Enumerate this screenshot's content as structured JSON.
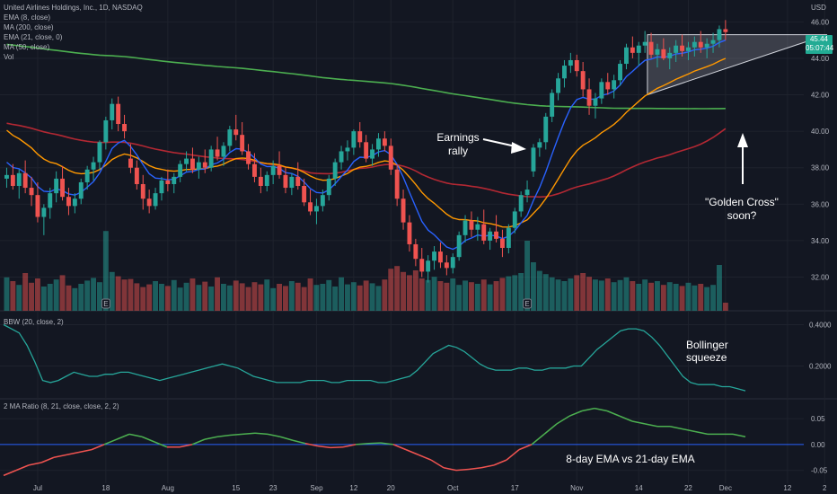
{
  "header": {
    "symbol_title": "United Airlines Holdings, Inc., 1D, NASDAQ",
    "indicators": [
      "EMA (8, close)",
      "MA (200, close)",
      "EMA (21, close, 0)",
      "MA (50, close)",
      "Vol"
    ]
  },
  "panes": {
    "bbw_label": "BBW (20, close, 2)",
    "ratio_label": "2 MA Ratio (8, 21, close, close, 2, 2)"
  },
  "price_badge": {
    "price": "45.44",
    "timer": "05:07:44"
  },
  "colors": {
    "background": "#131722",
    "grid": "#1e222d",
    "up_candle": "#26a69a",
    "down_candle": "#ef5350",
    "ema8": "#2962ff",
    "ema21": "#ff9800",
    "ma50": "#b22833",
    "ma200": "#4caf50",
    "bbw_line": "#26a69a",
    "ratio_up": "#4caf50",
    "ratio_down": "#ef5350",
    "zero_line": "#2962ff",
    "triangle_fill": "#b2b5be"
  },
  "annotations": {
    "earnings": [
      "Earnings",
      "rally"
    ],
    "golden_cross": [
      "\"Golden Cross\"",
      "soon?"
    ],
    "bollinger": [
      "Bollinger",
      "squeeze"
    ],
    "ema_note": "8-day EMA vs 21-day EMA"
  },
  "chart_data": {
    "type": "candlestick",
    "currency": "USD",
    "price_axis": {
      "label": "USD",
      "ticks": [
        32,
        34,
        36,
        38,
        40,
        42,
        44,
        46
      ],
      "tick_labels": [
        "32.00",
        "34.00",
        "36.00",
        "38.00",
        "40.00",
        "42.00",
        "44.00",
        "46.00"
      ],
      "range": [
        30.3,
        47.2
      ]
    },
    "time_axis": {
      "tick_labels": [
        "Jul",
        "18",
        "Aug",
        "15",
        "23",
        "Sep",
        "12",
        "20",
        "Oct",
        "17",
        "Nov",
        "14",
        "22",
        "Dec",
        "12",
        "2"
      ],
      "tick_bar_index": [
        5,
        16,
        26,
        37,
        43,
        50,
        56,
        62,
        72,
        82,
        92,
        102,
        110,
        116,
        126,
        132
      ]
    },
    "ohlc": [
      [
        37.4,
        38.0,
        36.9,
        37.6
      ],
      [
        37.6,
        38.2,
        36.8,
        37.0
      ],
      [
        37.0,
        37.9,
        36.3,
        37.7
      ],
      [
        37.7,
        38.4,
        36.6,
        36.9
      ],
      [
        36.9,
        37.5,
        35.9,
        36.5
      ],
      [
        36.5,
        37.2,
        35.0,
        35.3
      ],
      [
        35.3,
        36.0,
        34.3,
        35.8
      ],
      [
        35.8,
        36.9,
        35.2,
        36.6
      ],
      [
        36.6,
        37.8,
        36.1,
        37.4
      ],
      [
        37.4,
        38.1,
        36.2,
        36.4
      ],
      [
        36.4,
        36.9,
        35.4,
        35.9
      ],
      [
        35.9,
        36.6,
        35.5,
        36.3
      ],
      [
        36.3,
        37.4,
        36.0,
        37.2
      ],
      [
        37.2,
        38.1,
        36.8,
        37.9
      ],
      [
        37.9,
        38.6,
        37.3,
        38.3
      ],
      [
        38.3,
        39.5,
        37.9,
        39.4
      ],
      [
        39.4,
        40.8,
        39.0,
        40.6
      ],
      [
        40.6,
        41.8,
        40.1,
        41.5
      ],
      [
        41.5,
        41.9,
        40.0,
        40.4
      ],
      [
        40.4,
        40.9,
        39.6,
        40.0
      ],
      [
        38.5,
        39.3,
        37.7,
        38.0
      ],
      [
        38.0,
        38.4,
        36.8,
        37.1
      ],
      [
        37.1,
        37.6,
        35.7,
        36.3
      ],
      [
        36.3,
        36.8,
        35.5,
        35.9
      ],
      [
        35.9,
        36.9,
        35.7,
        36.6
      ],
      [
        36.6,
        37.5,
        36.2,
        37.3
      ],
      [
        37.3,
        37.9,
        36.7,
        37.1
      ],
      [
        37.1,
        37.7,
        36.6,
        37.5
      ],
      [
        37.5,
        38.4,
        37.2,
        38.2
      ],
      [
        38.2,
        38.9,
        37.8,
        38.5
      ],
      [
        38.5,
        39.1,
        37.7,
        37.9
      ],
      [
        37.9,
        38.6,
        37.4,
        38.3
      ],
      [
        38.3,
        39.0,
        37.7,
        38.0
      ],
      [
        38.0,
        39.2,
        37.8,
        39.0
      ],
      [
        39.0,
        39.7,
        38.4,
        38.6
      ],
      [
        38.6,
        39.4,
        38.1,
        39.2
      ],
      [
        39.2,
        40.3,
        38.9,
        40.1
      ],
      [
        40.1,
        40.9,
        39.5,
        39.8
      ],
      [
        39.8,
        40.5,
        38.7,
        38.9
      ],
      [
        38.9,
        39.3,
        37.9,
        38.2
      ],
      [
        38.2,
        38.8,
        37.2,
        37.5
      ],
      [
        37.5,
        38.0,
        36.6,
        37.0
      ],
      [
        37.0,
        37.8,
        36.7,
        37.6
      ],
      [
        37.6,
        38.4,
        37.1,
        38.1
      ],
      [
        38.1,
        38.9,
        37.4,
        37.6
      ],
      [
        37.6,
        38.0,
        36.6,
        36.9
      ],
      [
        36.9,
        37.7,
        36.5,
        37.5
      ],
      [
        37.5,
        38.3,
        36.8,
        37.0
      ],
      [
        37.0,
        37.4,
        35.9,
        36.1
      ],
      [
        36.1,
        36.8,
        35.4,
        35.6
      ],
      [
        35.6,
        36.3,
        34.9,
        35.9
      ],
      [
        35.9,
        36.8,
        35.6,
        36.5
      ],
      [
        36.5,
        37.6,
        36.2,
        37.4
      ],
      [
        37.4,
        38.5,
        37.0,
        38.3
      ],
      [
        38.3,
        39.2,
        37.9,
        38.9
      ],
      [
        38.9,
        39.5,
        38.4,
        39.1
      ],
      [
        39.1,
        40.1,
        38.7,
        40.0
      ],
      [
        40.0,
        40.5,
        39.1,
        39.4
      ],
      [
        39.4,
        39.8,
        38.3,
        38.5
      ],
      [
        38.5,
        39.3,
        38.1,
        39.0
      ],
      [
        39.0,
        39.9,
        38.6,
        39.6
      ],
      [
        39.6,
        40.0,
        38.9,
        39.2
      ],
      [
        39.2,
        39.6,
        37.6,
        37.9
      ],
      [
        37.9,
        38.2,
        35.9,
        36.3
      ],
      [
        36.3,
        36.8,
        34.6,
        35.0
      ],
      [
        35.0,
        35.4,
        33.4,
        33.8
      ],
      [
        33.8,
        34.1,
        32.6,
        33.0
      ],
      [
        33.0,
        33.6,
        32.0,
        32.3
      ],
      [
        32.3,
        33.2,
        31.7,
        32.9
      ],
      [
        32.9,
        33.7,
        32.4,
        33.4
      ],
      [
        33.4,
        33.9,
        32.5,
        32.8
      ],
      [
        32.8,
        33.2,
        32.1,
        32.5
      ],
      [
        32.5,
        33.3,
        32.2,
        33.1
      ],
      [
        33.1,
        34.5,
        32.9,
        34.3
      ],
      [
        34.3,
        35.4,
        33.9,
        35.1
      ],
      [
        35.1,
        35.6,
        34.2,
        34.6
      ],
      [
        34.6,
        35.3,
        34.0,
        34.9
      ],
      [
        34.9,
        35.7,
        33.8,
        34.0
      ],
      [
        34.0,
        34.7,
        33.5,
        34.5
      ],
      [
        34.5,
        35.4,
        33.9,
        34.1
      ],
      [
        34.1,
        34.6,
        33.1,
        33.6
      ],
      [
        33.6,
        34.9,
        33.3,
        34.7
      ],
      [
        34.7,
        35.8,
        34.4,
        35.6
      ],
      [
        35.6,
        36.7,
        35.3,
        36.5
      ],
      [
        36.5,
        37.3,
        36.1,
        36.8
      ],
      [
        37.8,
        39.3,
        37.5,
        39.1
      ],
      [
        39.1,
        39.6,
        38.6,
        39.4
      ],
      [
        39.4,
        41.0,
        39.0,
        40.8
      ],
      [
        40.8,
        42.3,
        40.5,
        42.1
      ],
      [
        42.1,
        43.2,
        41.7,
        42.9
      ],
      [
        42.9,
        43.9,
        42.4,
        43.6
      ],
      [
        43.6,
        44.3,
        43.2,
        43.9
      ],
      [
        43.9,
        44.2,
        43.0,
        43.3
      ],
      [
        43.3,
        43.8,
        41.9,
        42.3
      ],
      [
        42.3,
        42.9,
        40.9,
        41.4
      ],
      [
        41.4,
        42.1,
        40.7,
        41.8
      ],
      [
        41.8,
        42.9,
        41.5,
        42.7
      ],
      [
        42.7,
        43.2,
        42.0,
        42.3
      ],
      [
        42.3,
        43.1,
        41.8,
        42.8
      ],
      [
        42.8,
        43.9,
        42.5,
        43.7
      ],
      [
        43.7,
        44.8,
        43.4,
        44.6
      ],
      [
        44.6,
        45.2,
        44.0,
        44.3
      ],
      [
        44.3,
        44.9,
        43.6,
        44.7
      ],
      [
        44.7,
        45.5,
        44.3,
        44.9
      ],
      [
        44.9,
        45.4,
        44.0,
        44.2
      ],
      [
        44.2,
        44.8,
        43.5,
        44.5
      ],
      [
        44.5,
        45.1,
        43.9,
        44.0
      ],
      [
        44.0,
        44.6,
        43.4,
        44.3
      ],
      [
        44.3,
        45.0,
        43.8,
        44.7
      ],
      [
        44.7,
        45.3,
        44.1,
        44.4
      ],
      [
        44.4,
        44.9,
        43.9,
        44.6
      ],
      [
        44.6,
        45.2,
        44.1,
        44.9
      ],
      [
        44.9,
        45.5,
        44.3,
        44.6
      ],
      [
        44.6,
        45.1,
        44.0,
        44.8
      ],
      [
        44.8,
        45.4,
        44.3,
        45.0
      ],
      [
        45.0,
        45.8,
        44.6,
        45.6
      ],
      [
        45.6,
        46.1,
        45.0,
        45.44
      ]
    ],
    "volume_rel": [
      0.62,
      0.55,
      0.48,
      0.7,
      0.52,
      0.6,
      0.45,
      0.5,
      0.58,
      0.66,
      0.47,
      0.42,
      0.5,
      0.56,
      0.61,
      0.53,
      1.48,
      0.72,
      0.64,
      0.58,
      0.59,
      0.51,
      0.44,
      0.49,
      0.55,
      0.5,
      0.46,
      0.57,
      0.43,
      0.52,
      0.6,
      0.48,
      0.54,
      0.45,
      0.62,
      0.5,
      0.47,
      0.56,
      0.51,
      0.44,
      0.53,
      0.49,
      0.58,
      0.42,
      0.5,
      0.46,
      0.55,
      0.52,
      0.44,
      0.6,
      0.48,
      0.5,
      0.57,
      0.45,
      0.62,
      0.49,
      0.53,
      0.47,
      0.56,
      0.51,
      0.46,
      0.58,
      0.78,
      0.83,
      0.72,
      0.66,
      0.75,
      0.6,
      0.57,
      0.63,
      0.55,
      0.52,
      0.6,
      0.48,
      0.56,
      0.53,
      0.5,
      0.58,
      0.49,
      0.55,
      0.61,
      0.64,
      0.66,
      0.7,
      1.3,
      0.9,
      0.74,
      0.68,
      0.62,
      0.58,
      0.55,
      0.6,
      0.66,
      0.7,
      0.63,
      0.58,
      0.56,
      0.6,
      0.53,
      0.57,
      0.62,
      0.55,
      0.5,
      0.58,
      0.52,
      0.55,
      0.48,
      0.53,
      0.5,
      0.46,
      0.52,
      0.47,
      0.5,
      0.44,
      0.48,
      0.85,
      0.15
    ],
    "volume_markers": [
      {
        "bar": 16,
        "label": "E"
      },
      {
        "bar": 84,
        "label": "E"
      }
    ],
    "triangle_pattern": {
      "top_left": [
        101,
        45.3
      ],
      "top_right": [
        130,
        45.3
      ],
      "bottom_left": [
        101,
        42.0
      ]
    },
    "bbw": {
      "ticks": [
        0.2,
        0.4
      ],
      "tick_labels": [
        "0.2000",
        "0.4000"
      ],
      "range": [
        0.05,
        0.45
      ],
      "values": [
        0.4,
        0.38,
        0.36,
        0.3,
        0.22,
        0.13,
        0.12,
        0.13,
        0.15,
        0.17,
        0.16,
        0.15,
        0.15,
        0.16,
        0.16,
        0.17,
        0.17,
        0.16,
        0.15,
        0.14,
        0.13,
        0.14,
        0.15,
        0.16,
        0.17,
        0.18,
        0.19,
        0.2,
        0.21,
        0.2,
        0.19,
        0.17,
        0.15,
        0.14,
        0.13,
        0.12,
        0.12,
        0.12,
        0.12,
        0.13,
        0.13,
        0.13,
        0.12,
        0.12,
        0.13,
        0.13,
        0.13,
        0.13,
        0.12,
        0.12,
        0.13,
        0.14,
        0.15,
        0.18,
        0.22,
        0.26,
        0.28,
        0.3,
        0.29,
        0.27,
        0.24,
        0.21,
        0.19,
        0.18,
        0.18,
        0.18,
        0.19,
        0.19,
        0.18,
        0.18,
        0.19,
        0.19,
        0.19,
        0.2,
        0.2,
        0.24,
        0.28,
        0.31,
        0.34,
        0.37,
        0.38,
        0.38,
        0.37,
        0.34,
        0.3,
        0.25,
        0.2,
        0.15,
        0.12,
        0.11,
        0.11,
        0.11,
        0.1,
        0.1,
        0.09,
        0.08
      ]
    },
    "ma_ratio": {
      "ticks": [
        -0.05,
        0.0,
        0.05
      ],
      "tick_labels": [
        "-0.05",
        "0.00",
        "0.05"
      ],
      "range": [
        -0.075,
        0.085
      ],
      "values": [
        -0.06,
        -0.05,
        -0.04,
        -0.035,
        -0.025,
        -0.02,
        -0.015,
        -0.01,
        0.0,
        0.01,
        0.02,
        0.015,
        0.005,
        -0.005,
        -0.005,
        0.0,
        0.01,
        0.015,
        0.018,
        0.02,
        0.022,
        0.02,
        0.015,
        0.008,
        0.002,
        -0.003,
        -0.006,
        -0.005,
        0.0,
        0.002,
        0.003,
        0.0,
        -0.01,
        -0.02,
        -0.03,
        -0.045,
        -0.05,
        -0.048,
        -0.045,
        -0.04,
        -0.03,
        -0.01,
        0.0,
        0.02,
        0.04,
        0.055,
        0.065,
        0.07,
        0.065,
        0.055,
        0.045,
        0.04,
        0.035,
        0.035,
        0.03,
        0.025,
        0.02,
        0.02,
        0.02,
        0.015
      ]
    }
  }
}
